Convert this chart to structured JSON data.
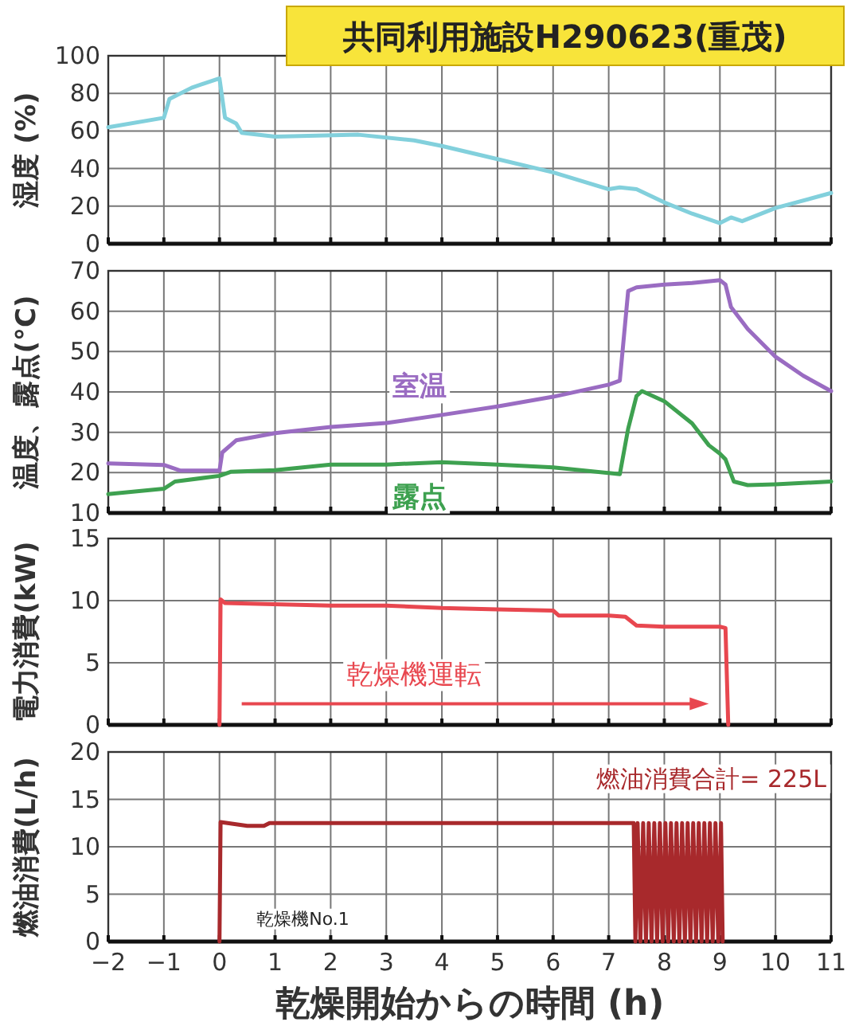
{
  "chart_data": [
    {
      "type": "line",
      "title": "共同利用施設H290623(重茂)",
      "ylabel": "湿度 (%)",
      "xlim": [
        -2,
        11
      ],
      "xticks": [
        -2,
        -1,
        0,
        1,
        2,
        3,
        4,
        5,
        6,
        7,
        8,
        9,
        10,
        11
      ],
      "ylim": [
        0,
        100
      ],
      "yticks": [
        0,
        20,
        40,
        60,
        80,
        100
      ],
      "grid": true,
      "tick_labels": "y",
      "series": [
        {
          "color": "#82d0dc",
          "x": [
            -2,
            -1,
            -0.9,
            -0.5,
            0,
            0.1,
            0.3,
            0.4,
            1,
            2.5,
            3.5,
            4,
            5,
            6,
            7,
            7.2,
            7.5,
            8,
            8.5,
            9,
            9.2,
            9.4,
            10,
            11
          ],
          "values": [
            62,
            67,
            77,
            83,
            88,
            67,
            64,
            59,
            57,
            58,
            55,
            52,
            45,
            38,
            29,
            30,
            29,
            22,
            16,
            11,
            14,
            12,
            19,
            27
          ]
        }
      ]
    },
    {
      "type": "line",
      "ylabel": "温度、露点(°C)",
      "xlim": [
        -2,
        11
      ],
      "xticks": [
        -2,
        -1,
        0,
        1,
        2,
        3,
        4,
        5,
        6,
        7,
        8,
        9,
        10,
        11
      ],
      "ylim": [
        10,
        70
      ],
      "yticks": [
        10,
        20,
        30,
        40,
        50,
        60,
        70
      ],
      "grid": true,
      "tick_labels": "y",
      "series": [
        {
          "name": "室温",
          "color": "#9a6cc2",
          "x": [
            -2,
            -1,
            -0.7,
            0,
            0.05,
            0.3,
            1,
            2,
            3,
            4,
            5,
            6,
            7,
            7.2,
            7.35,
            7.5,
            8,
            8.5,
            9,
            9.1,
            9.2,
            9.5,
            10,
            10.5,
            11
          ],
          "values": [
            22.3,
            21.9,
            20.5,
            20.5,
            25,
            28,
            29.8,
            31.3,
            32.3,
            34.3,
            36.4,
            38.8,
            41.8,
            42.8,
            65,
            65.9,
            66.6,
            67,
            67.7,
            66.6,
            61,
            55.6,
            48.7,
            44,
            40.2
          ]
        },
        {
          "name": "露点",
          "color": "#3ea150",
          "x": [
            -2,
            -1,
            -0.8,
            0,
            0.2,
            1,
            2,
            3,
            4,
            5,
            6,
            7,
            7.2,
            7.35,
            7.5,
            7.6,
            8,
            8.5,
            8.8,
            9,
            9.1,
            9.25,
            9.5,
            10,
            11
          ],
          "values": [
            14.7,
            16,
            17.8,
            19.2,
            20.2,
            20.6,
            22,
            22,
            22.6,
            22,
            21.3,
            19.9,
            19.6,
            30.9,
            39,
            40.2,
            37.7,
            32.2,
            26.8,
            24.7,
            23.3,
            17.8,
            16.9,
            17.1,
            17.8
          ]
        }
      ]
    },
    {
      "type": "line",
      "ylabel": "電力消費(kW)",
      "xlim": [
        -2,
        11
      ],
      "xticks": [
        -2,
        -1,
        0,
        1,
        2,
        3,
        4,
        5,
        6,
        7,
        8,
        9,
        10,
        11
      ],
      "ylim": [
        0,
        15
      ],
      "yticks": [
        0,
        5,
        10,
        15
      ],
      "grid": true,
      "tick_labels": "y",
      "annotations": [
        "乾燥機運転"
      ],
      "series": [
        {
          "color": "#e8474f",
          "x": [
            0,
            0.02,
            0.1,
            2,
            3,
            4,
            5,
            6,
            6.1,
            7,
            7.3,
            7.5,
            8,
            9,
            9.1,
            9.15
          ],
          "values": [
            0,
            10.1,
            9.8,
            9.6,
            9.6,
            9.4,
            9.3,
            9.2,
            8.8,
            8.8,
            8.7,
            8,
            7.9,
            7.9,
            7.8,
            0
          ]
        }
      ]
    },
    {
      "type": "line",
      "ylabel": "燃油消費(L/h)",
      "xlabel": "乾燥開始からの時間 (h)",
      "xlim": [
        -2,
        11
      ],
      "xticks": [
        -2,
        -1,
        0,
        1,
        2,
        3,
        4,
        5,
        6,
        7,
        8,
        9,
        10,
        11
      ],
      "ylim": [
        0,
        20
      ],
      "yticks": [
        0,
        5,
        10,
        15,
        20
      ],
      "grid": true,
      "annotations": [
        "燃油消費合計= 225L",
        "乾燥機No.1"
      ],
      "series": [
        {
          "color": "#a8292c",
          "x": [
            0,
            0.02,
            0.5,
            0.8,
            0.9,
            7.45,
            7.48,
            7.52,
            7.57,
            7.62,
            7.67,
            7.72,
            7.77,
            7.82,
            7.87,
            7.92,
            7.97,
            8.02,
            8.07,
            8.12,
            8.17,
            8.22,
            8.27,
            8.32,
            8.37,
            8.42,
            8.47,
            8.52,
            8.57,
            8.62,
            8.67,
            8.72,
            8.77,
            8.82,
            8.87,
            8.92,
            8.97,
            9.02,
            9.05
          ],
          "values": [
            0,
            12.6,
            12.2,
            12.2,
            12.5,
            12.5,
            0,
            12.5,
            0,
            12.5,
            0,
            12.5,
            0,
            12.5,
            0,
            12.5,
            0,
            12.5,
            0,
            12.5,
            0,
            12.5,
            0,
            12.5,
            0,
            12.5,
            0,
            12.5,
            0,
            12.5,
            0,
            12.5,
            0,
            12.5,
            0,
            12.5,
            0,
            12.5,
            0
          ]
        }
      ]
    }
  ]
}
